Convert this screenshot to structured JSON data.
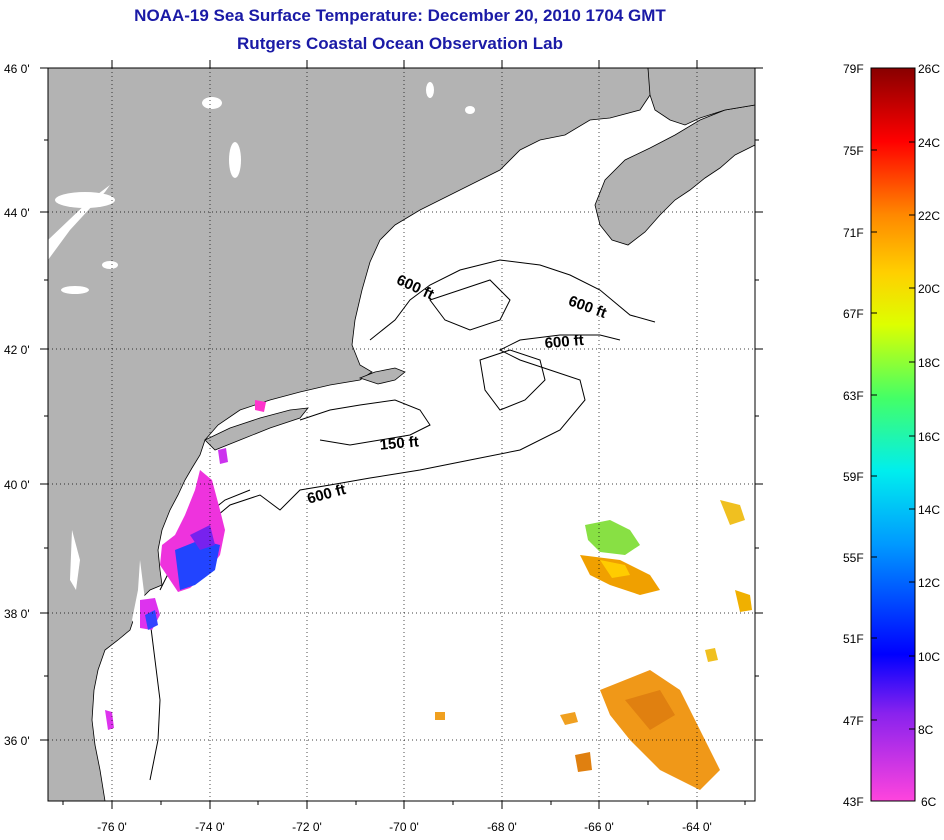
{
  "title": {
    "line1": "NOAA-19 Sea Surface Temperature:  December 20, 2010 1704 GMT",
    "line2": "Rutgers Coastal Ocean Observation Lab"
  },
  "axes": {
    "lat_labels": [
      "46 0'",
      "44 0'",
      "42 0'",
      "40 0'",
      "38 0'",
      "36 0'"
    ],
    "lon_labels": [
      "-76 0'",
      "-74 0'",
      "-72 0'",
      "-70 0'",
      "-68 0'",
      "-66 0'",
      "-64 0'"
    ]
  },
  "depth_labels": [
    "600 ft",
    "600 ft",
    "600 ft",
    "150 ft",
    "600 ft"
  ],
  "colorbar": {
    "fahrenheit": [
      "79F",
      "75F",
      "71F",
      "67F",
      "63F",
      "59F",
      "55F",
      "51F",
      "47F",
      "43F"
    ],
    "celsius": [
      "26C",
      "24C",
      "22C",
      "20C",
      "18C",
      "16C",
      "14C",
      "12C",
      "10C",
      "8C",
      "6C"
    ]
  },
  "colors": {
    "land": "#b3b3b3",
    "ocean": "#ffffff",
    "title": "#1a1aa6"
  }
}
